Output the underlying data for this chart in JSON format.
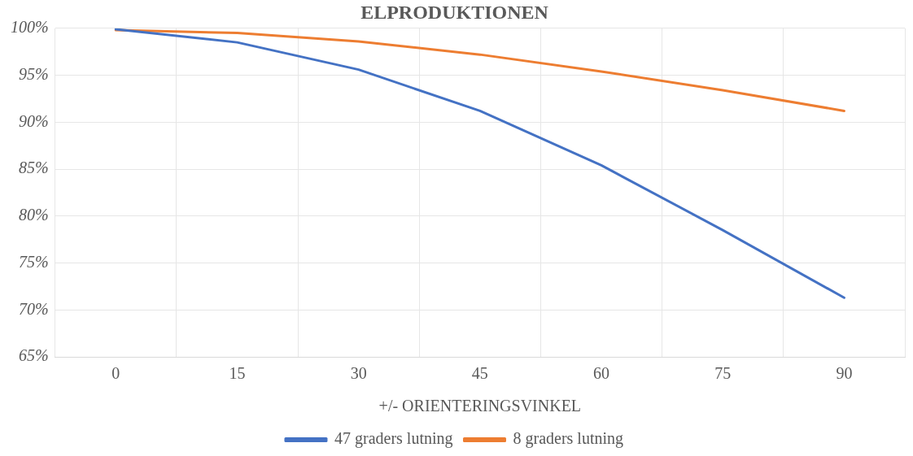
{
  "chart_data": {
    "type": "line",
    "title": "ELPRODUKTIONEN",
    "xlabel": "+/- ORIENTERINGSVINKEL",
    "categories": [
      "0",
      "15",
      "30",
      "45",
      "60",
      "75",
      "90"
    ],
    "series": [
      {
        "name": "47 graders lutning",
        "color": "#4472c4",
        "values": [
          99.9,
          98.5,
          95.6,
          91.2,
          85.4,
          78.5,
          71.3
        ]
      },
      {
        "name": "8 graders lutning",
        "color": "#ed7d31",
        "values": [
          99.8,
          99.5,
          98.6,
          97.2,
          95.4,
          93.4,
          91.2
        ]
      }
    ],
    "ylim": [
      65,
      100
    ],
    "yticks": [
      {
        "value": 65,
        "label": "65%"
      },
      {
        "value": 70,
        "label": "70%"
      },
      {
        "value": 75,
        "label": "75%"
      },
      {
        "value": 80,
        "label": "80%"
      },
      {
        "value": 85,
        "label": "85%"
      },
      {
        "value": 90,
        "label": "90%"
      },
      {
        "value": 95,
        "label": "95%"
      },
      {
        "value": 100,
        "label": "100%"
      }
    ],
    "grid": true,
    "legend": "bottom",
    "marker": "none",
    "line_style": "solid"
  }
}
